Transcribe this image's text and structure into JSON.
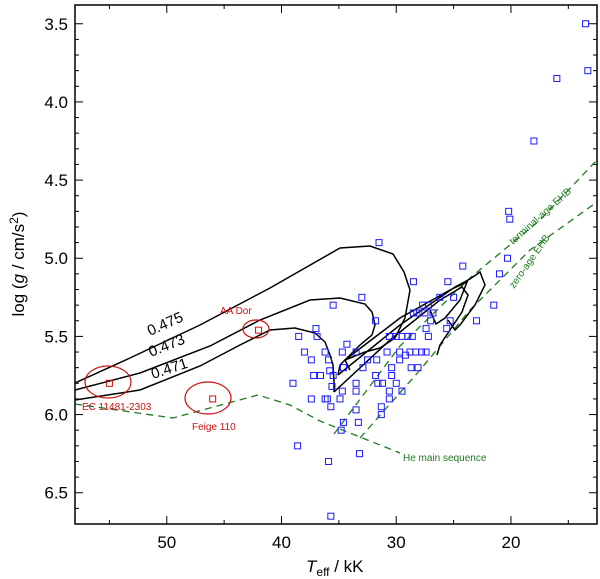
{
  "chart_data": {
    "type": "scatter",
    "title": "",
    "xlabel": {
      "base": "T",
      "sub": "eff",
      "rest": " / kK"
    },
    "ylabel": {
      "pre": "log (",
      "var": "g",
      "mid": " / cm/s",
      "sup": "2",
      "post": ")"
    },
    "xlim": [
      58,
      12.5
    ],
    "ylim": [
      6.7,
      3.38
    ],
    "xticks": [
      50,
      40,
      30,
      20
    ],
    "yticks": [
      3.5,
      4.0,
      4.5,
      5.0,
      5.5,
      6.0,
      6.5
    ],
    "ytick_labels": [
      "3.5",
      "4.0",
      "4.5",
      "5.0",
      "5.5",
      "6.0",
      "6.5"
    ],
    "stars": [
      [
        13.5,
        3.5
      ],
      [
        13.3,
        3.8
      ],
      [
        16,
        3.85
      ],
      [
        18,
        4.25
      ],
      [
        20.2,
        4.7
      ],
      [
        20.1,
        4.75
      ],
      [
        31.5,
        4.9
      ],
      [
        20.3,
        5.0
      ],
      [
        24.2,
        5.05
      ],
      [
        21,
        5.1
      ],
      [
        28.5,
        5.15
      ],
      [
        25.5,
        5.15
      ],
      [
        35.5,
        5.3
      ],
      [
        21.5,
        5.3
      ],
      [
        33,
        5.25
      ],
      [
        26.2,
        5.25
      ],
      [
        25,
        5.25
      ],
      [
        27.7,
        5.3
      ],
      [
        27.2,
        5.3
      ],
      [
        27.5,
        5.35
      ],
      [
        28.2,
        5.35
      ],
      [
        28.5,
        5.35
      ],
      [
        26.8,
        5.35
      ],
      [
        25.3,
        5.4
      ],
      [
        23,
        5.4
      ],
      [
        37,
        5.45
      ],
      [
        27.4,
        5.45
      ],
      [
        25.6,
        5.45
      ],
      [
        31.8,
        5.4
      ],
      [
        27,
        5.4
      ],
      [
        38.5,
        5.5
      ],
      [
        29.5,
        5.5
      ],
      [
        30,
        5.5
      ],
      [
        29,
        5.5
      ],
      [
        30.6,
        5.5
      ],
      [
        28.6,
        5.5
      ],
      [
        27.2,
        5.5
      ],
      [
        36.9,
        5.5
      ],
      [
        34.3,
        5.55
      ],
      [
        38,
        5.6
      ],
      [
        36.2,
        5.6
      ],
      [
        34.7,
        5.6
      ],
      [
        33.5,
        5.6
      ],
      [
        30.8,
        5.6
      ],
      [
        29.7,
        5.6
      ],
      [
        28.8,
        5.6
      ],
      [
        28.3,
        5.6
      ],
      [
        27.8,
        5.6
      ],
      [
        27.4,
        5.6
      ],
      [
        29.2,
        5.62
      ],
      [
        37.4,
        5.65
      ],
      [
        35.9,
        5.65
      ],
      [
        32.5,
        5.65
      ],
      [
        31.7,
        5.65
      ],
      [
        29.7,
        5.65
      ],
      [
        30.4,
        5.7
      ],
      [
        32.9,
        5.7
      ],
      [
        28.7,
        5.7
      ],
      [
        34.6,
        5.7
      ],
      [
        28.1,
        5.7
      ],
      [
        35.8,
        5.72
      ],
      [
        37.2,
        5.75
      ],
      [
        35.5,
        5.75
      ],
      [
        31.8,
        5.75
      ],
      [
        30.4,
        5.75
      ],
      [
        36.6,
        5.75
      ],
      [
        30,
        5.8
      ],
      [
        31.6,
        5.8
      ],
      [
        31.2,
        5.8
      ],
      [
        33.5,
        5.8
      ],
      [
        39,
        5.8
      ],
      [
        35.6,
        5.82
      ],
      [
        30.6,
        5.85
      ],
      [
        34.7,
        5.85
      ],
      [
        33.5,
        5.85
      ],
      [
        29.5,
        5.85
      ],
      [
        36.2,
        5.9
      ],
      [
        34.9,
        5.9
      ],
      [
        36,
        5.9
      ],
      [
        31.3,
        5.95
      ],
      [
        35.7,
        5.95
      ],
      [
        33.5,
        5.97
      ],
      [
        30.6,
        5.9
      ],
      [
        37.4,
        5.9
      ],
      [
        31.3,
        6.0
      ],
      [
        34.6,
        6.05
      ],
      [
        33.3,
        6.05
      ],
      [
        34.8,
        6.1
      ],
      [
        38.6,
        6.2
      ],
      [
        33.2,
        6.25
      ],
      [
        35.9,
        6.3
      ],
      [
        35.7,
        6.65
      ],
      [
        55,
        5.8
      ],
      [
        46,
        5.9
      ],
      [
        42,
        5.46
      ]
    ]
  },
  "annotations": {
    "aa_dor": "AA Dor",
    "ec_11481": "EC 11481-2303",
    "feige_110": "Feige 110",
    "he_ms": "He main sequence",
    "tams": "terminal-age EHB",
    "zams": "zero-age EHB",
    "track_0475": "0.475",
    "track_0473": "0.473",
    "track_0471": "0.471"
  },
  "colors": {
    "star": "#1a1aff",
    "highlight": "#cc1111",
    "guide": "#1f7a1f",
    "track": "#000000"
  }
}
